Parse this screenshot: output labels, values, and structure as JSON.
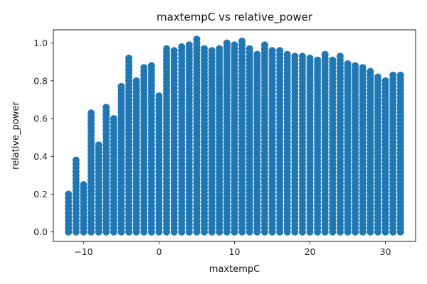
{
  "chart_data": {
    "type": "scatter",
    "title": "maxtempC vs relative_power",
    "xlabel": "maxtempC",
    "ylabel": "relative_power",
    "xlim": [
      -14,
      34
    ],
    "ylim": [
      -0.05,
      1.07
    ],
    "xticks": [
      -10,
      0,
      10,
      20,
      30
    ],
    "xtick_labels": [
      "−10",
      "0",
      "10",
      "20",
      "30"
    ],
    "yticks": [
      0.0,
      0.2,
      0.4,
      0.6,
      0.8,
      1.0
    ],
    "ytick_labels": [
      "0.0",
      "0.2",
      "0.4",
      "0.6",
      "0.8",
      "1.0"
    ],
    "grid": false,
    "legend": "none",
    "point_color": "#1f77b4",
    "x": [
      -12,
      -11,
      -10,
      -9,
      -8,
      -7,
      -6,
      -5,
      -4,
      -3,
      -2,
      -1,
      0,
      1,
      2,
      3,
      4,
      5,
      6,
      7,
      8,
      9,
      10,
      11,
      12,
      13,
      14,
      15,
      16,
      17,
      18,
      19,
      20,
      21,
      22,
      23,
      24,
      25,
      26,
      27,
      28,
      29,
      30,
      31,
      32
    ],
    "y_max": [
      0.2,
      0.38,
      0.25,
      0.63,
      0.46,
      0.66,
      0.6,
      0.77,
      0.92,
      0.8,
      0.87,
      0.88,
      0.72,
      0.97,
      0.96,
      0.98,
      0.99,
      1.02,
      0.97,
      0.96,
      0.97,
      1.0,
      0.99,
      1.01,
      0.97,
      0.94,
      0.99,
      0.96,
      0.96,
      0.94,
      0.93,
      0.93,
      0.92,
      0.91,
      0.94,
      0.91,
      0.93,
      0.89,
      0.88,
      0.87,
      0.85,
      0.82,
      0.8,
      0.83,
      0.83
    ],
    "y_min": [
      0.0,
      0.0,
      0.0,
      0.0,
      0.0,
      0.0,
      0.0,
      0.0,
      0.0,
      0.0,
      0.0,
      0.0,
      0.0,
      0.0,
      0.0,
      0.0,
      0.0,
      0.0,
      0.0,
      0.0,
      0.0,
      0.0,
      0.0,
      0.0,
      0.0,
      0.0,
      0.0,
      0.0,
      0.0,
      0.0,
      0.0,
      0.0,
      0.0,
      0.0,
      0.0,
      0.0,
      0.0,
      0.0,
      0.0,
      0.0,
      0.0,
      0.0,
      0.0,
      0.0,
      0.0
    ],
    "point_step": 0.02
  }
}
